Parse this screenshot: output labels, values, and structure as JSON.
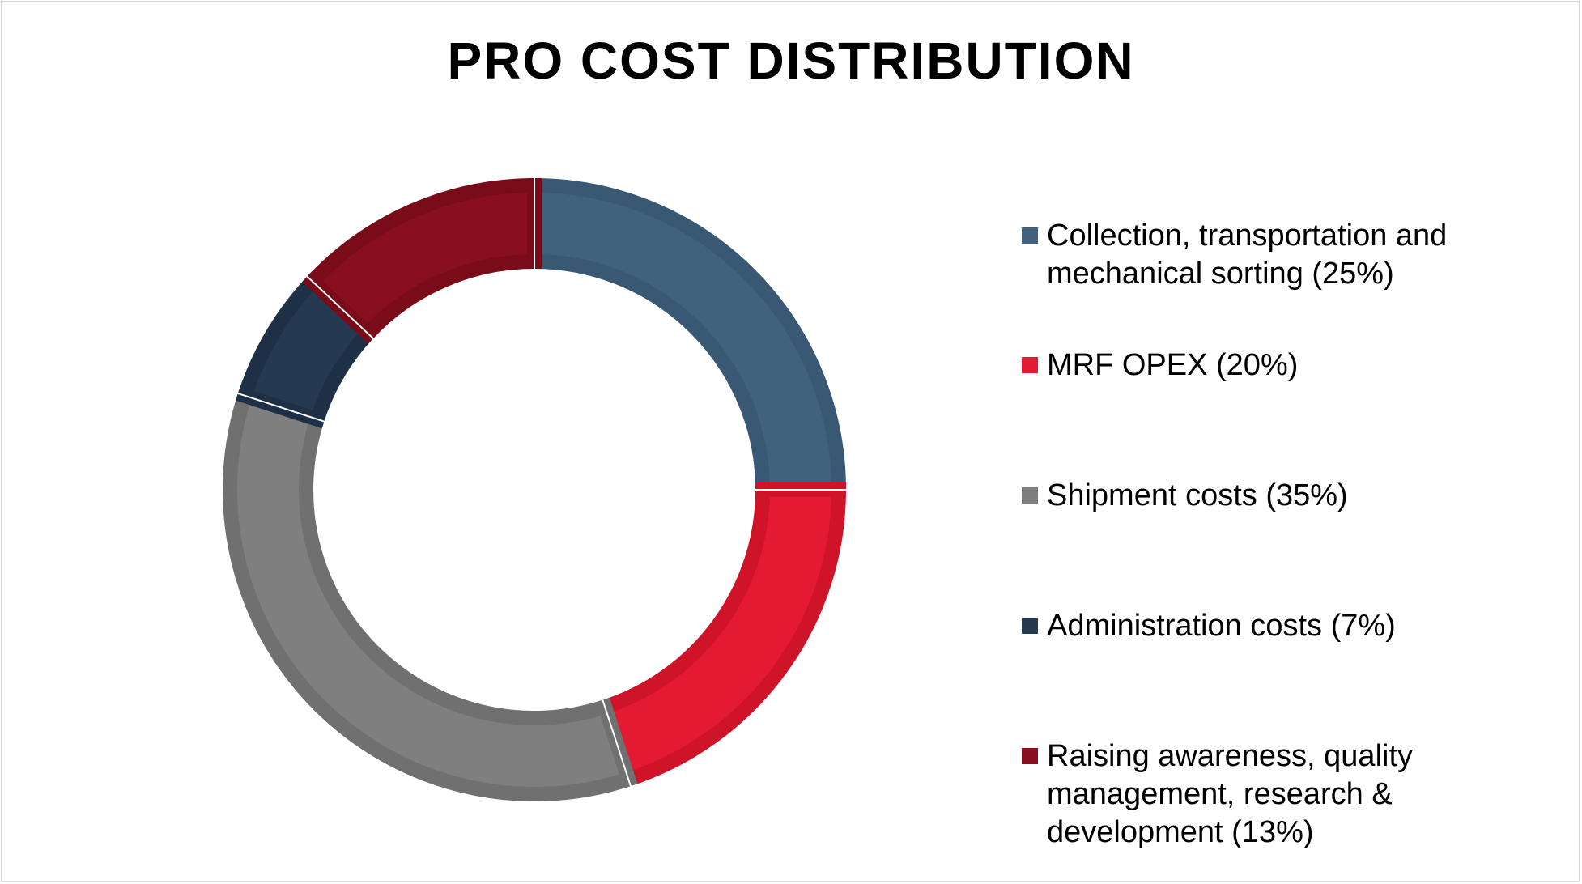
{
  "chart_data": {
    "type": "pie",
    "variant": "donut",
    "title": "PRO COST DISTRIBUTION",
    "legend_position": "right",
    "slices": [
      {
        "label": "Collection, transportation and mechanical sorting (25%)",
        "legend_text": "Collection, transportation and\nmechanical sorting (25%)",
        "value": 25,
        "color": "#41627f",
        "edge": "#385874"
      },
      {
        "label": "MRF OPEX (20%)",
        "legend_text": "MRF OPEX (20%)",
        "value": 20,
        "color": "#e41a32",
        "edge": "#cf1329"
      },
      {
        "label": "Shipment costs (35%)",
        "legend_text": "Shipment costs (35%)",
        "value": 35,
        "color": "#7f7f7f",
        "edge": "#707070"
      },
      {
        "label": "Administration costs (7%)",
        "legend_text": "Administration costs (7%)",
        "value": 7,
        "color": "#253a50",
        "edge": "#1d3046"
      },
      {
        "label": "Raising awareness, quality management, research & development (13%)",
        "legend_text": "Raising awareness, quality\nmanagement, research &\ndevelopment (13%)",
        "value": 13,
        "color": "#8a0f1e",
        "edge": "#7a0b18"
      }
    ]
  }
}
